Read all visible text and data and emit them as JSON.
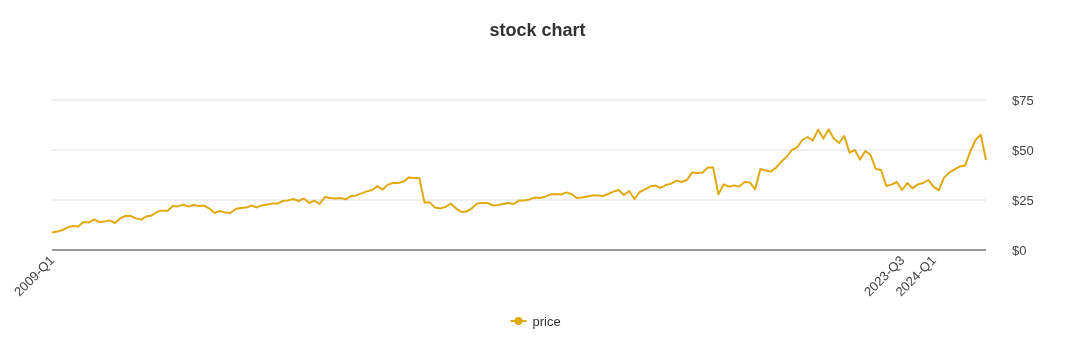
{
  "chart_data": {
    "type": "line",
    "title": "stock chart",
    "categories": [
      "2009-Q1",
      null,
      null,
      null,
      null,
      null,
      null,
      null,
      null,
      null,
      null,
      null,
      null,
      null,
      null,
      null,
      null,
      null,
      null,
      null,
      null,
      null,
      null,
      null,
      null,
      null,
      null,
      null,
      null,
      null,
      null,
      null,
      null,
      null,
      null,
      null,
      null,
      null,
      null,
      null,
      null,
      null,
      null,
      null,
      null,
      null,
      null,
      null,
      null,
      null,
      null,
      null,
      null,
      null,
      null,
      null,
      null,
      null,
      null,
      null,
      null,
      null,
      null,
      null,
      null,
      null,
      null,
      null,
      null,
      null,
      null,
      null,
      null,
      null,
      null,
      null,
      null,
      null,
      null,
      null,
      null,
      null,
      null,
      null,
      null,
      null,
      null,
      null,
      null,
      null,
      null,
      null,
      null,
      null,
      null,
      null,
      null,
      null,
      null,
      null,
      null,
      null,
      null,
      null,
      null,
      null,
      null,
      null,
      null,
      null,
      null,
      null,
      null,
      null,
      null,
      null,
      null,
      null,
      null,
      null,
      null,
      null,
      null,
      null,
      null,
      null,
      null,
      null,
      null,
      null,
      null,
      null,
      null,
      null,
      null,
      null,
      null,
      null,
      null,
      null,
      null,
      null,
      null,
      null,
      null,
      null,
      null,
      null,
      null,
      null,
      null,
      null,
      null,
      null,
      null,
      null,
      null,
      null,
      null,
      null,
      null,
      null,
      "2023-Q3",
      null,
      null,
      null,
      null,
      null,
      "2024-Q1",
      null,
      null,
      null,
      null,
      null,
      null,
      null,
      null,
      null,
      null
    ],
    "series": [
      {
        "name": "price",
        "color": "#e0a912",
        "values": [
          8.8,
          9.2,
          10,
          11.3,
          12,
          11.7,
          14,
          13.7,
          15.3,
          14,
          14.2,
          14.8,
          13.5,
          15.8,
          17,
          17,
          15.8,
          15.2,
          16.8,
          17.3,
          19,
          19.8,
          19.5,
          22,
          21.8,
          22.7,
          21.7,
          22.5,
          22,
          22.2,
          20.7,
          18.5,
          19.5,
          18.7,
          18.5,
          20.5,
          21,
          21.2,
          22.2,
          21.3,
          22.3,
          22.8,
          23.2,
          23.2,
          24.5,
          24.8,
          25.5,
          24.5,
          25.8,
          23.5,
          24.7,
          23,
          26.5,
          26,
          25.7,
          26,
          25.3,
          27,
          27.3,
          28.3,
          29.3,
          30,
          32,
          30.2,
          32.7,
          33.5,
          33.5,
          34.2,
          36.3,
          36,
          36,
          23.7,
          23.7,
          21.2,
          20.8,
          21.5,
          23.2,
          20.8,
          19,
          19.2,
          20.8,
          23.2,
          23.5,
          23.5,
          22.3,
          22.5,
          23,
          23.5,
          23,
          24.8,
          24.8,
          25.3,
          26.2,
          26,
          26.7,
          27.7,
          28,
          27.7,
          28.8,
          28,
          26,
          26.2,
          26.7,
          27.2,
          27.2,
          27,
          28,
          29.2,
          30,
          27.5,
          29.5,
          25.5,
          29,
          30.3,
          31.7,
          32.2,
          31,
          32.5,
          33.2,
          34.7,
          34,
          35,
          38.8,
          38.5,
          38.7,
          41.3,
          41.3,
          27.8,
          32.8,
          31.7,
          32.3,
          31.7,
          34,
          33.8,
          30.3,
          40.5,
          39.7,
          39.3,
          41.2,
          44.2,
          46.5,
          50,
          51.3,
          55,
          56.5,
          54.7,
          60.2,
          55.7,
          60.3,
          55.8,
          53.5,
          57,
          48.7,
          50,
          45.2,
          49.5,
          47.5,
          40.5,
          40,
          32,
          32.7,
          34,
          30,
          33.5,
          30.8,
          32.8,
          33.5,
          35,
          31.7,
          29.8,
          36.2,
          38.7,
          40.3,
          41.7,
          42.2,
          49.2,
          55,
          57.7,
          45
        ]
      }
    ],
    "ylim": [
      0,
      75
    ],
    "yticks": [
      {
        "value": 0,
        "label": "$0"
      },
      {
        "value": 25,
        "label": "$25"
      },
      {
        "value": 50,
        "label": "$50"
      },
      {
        "value": 75,
        "label": "$75"
      }
    ],
    "grid": "y",
    "legend": "bottom"
  }
}
